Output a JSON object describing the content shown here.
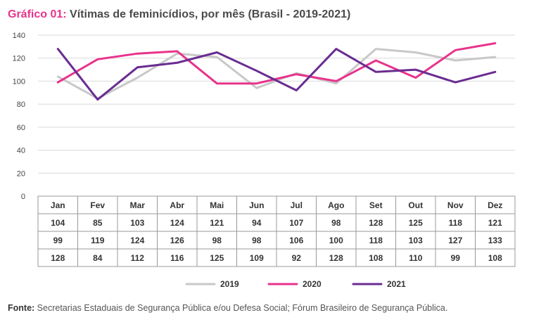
{
  "title": {
    "label": "Gráfico 01:",
    "text": "Vítimas de feminicídios, por mês (Brasil - 2019-2021)"
  },
  "source": {
    "label": "Fonte:",
    "text": "Secretarias Estaduais de Segurança Pública e/ou Defesa Social; Fórum Brasileiro de Segurança Pública."
  },
  "chart_data": {
    "type": "line",
    "categories": [
      "Jan",
      "Fev",
      "Mar",
      "Abr",
      "Mai",
      "Jun",
      "Jul",
      "Ago",
      "Set",
      "Out",
      "Nov",
      "Dez"
    ],
    "series": [
      {
        "name": "2019",
        "color": "#c8c8c8",
        "values": [
          104,
          85,
          103,
          124,
          121,
          94,
          107,
          98,
          128,
          125,
          118,
          121
        ]
      },
      {
        "name": "2020",
        "color": "#e8338c",
        "values": [
          99,
          119,
          124,
          126,
          98,
          98,
          106,
          100,
          118,
          103,
          127,
          133
        ]
      },
      {
        "name": "2021",
        "color": "#6a2c91",
        "values": [
          128,
          84,
          112,
          116,
          125,
          109,
          92,
          128,
          108,
          110,
          99,
          108
        ]
      }
    ],
    "ylim": [
      0,
      140
    ],
    "yticks": [
      0,
      20,
      40,
      60,
      80,
      100,
      120,
      140
    ],
    "grid": true,
    "legend": "bottom-center",
    "table": true
  }
}
